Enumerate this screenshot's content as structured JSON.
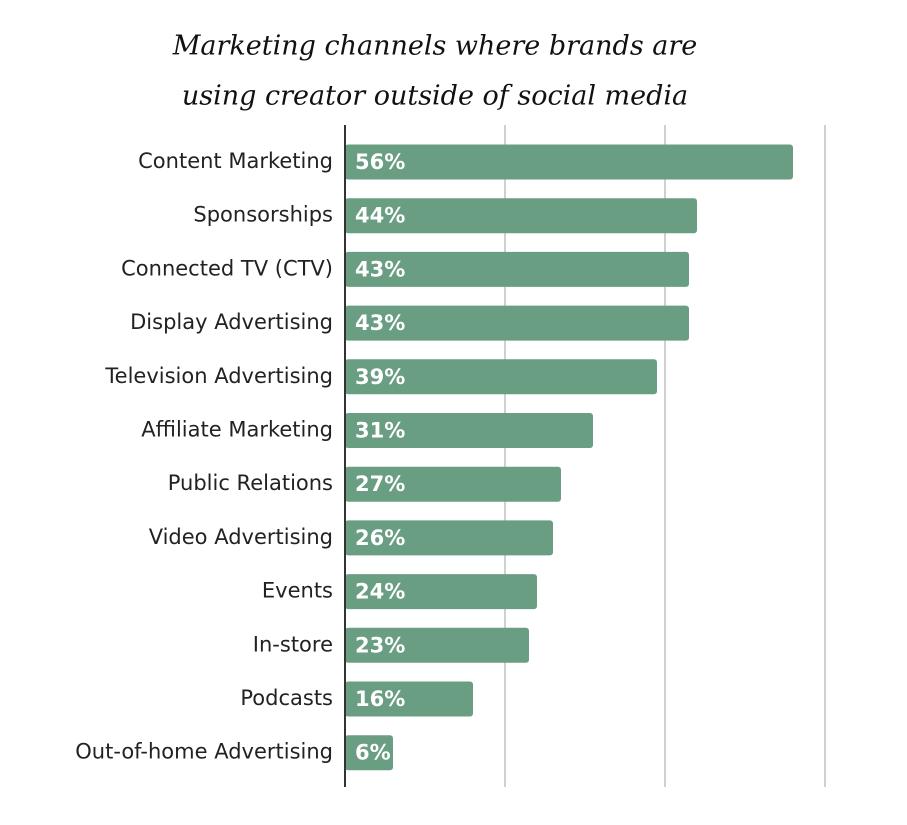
{
  "chart_data": {
    "type": "bar",
    "orientation": "horizontal",
    "title": [
      "Marketing channels where brands are",
      "using creator outside of social media"
    ],
    "categories": [
      "Content Marketing",
      "Sponsorships",
      "Connected TV (CTV)",
      "Display Advertising",
      "Television Advertising",
      "Affiliate Marketing",
      "Public Relations",
      "Video Advertising",
      "Events",
      "In-store",
      "Podcasts",
      "Out-of-home Advertising"
    ],
    "values": [
      56,
      44,
      43,
      43,
      39,
      31,
      27,
      26,
      24,
      23,
      16,
      6
    ],
    "value_labels": [
      "56%",
      "44%",
      "43%",
      "43%",
      "39%",
      "31%",
      "27%",
      "26%",
      "24%",
      "23%",
      "16%",
      "6%"
    ],
    "color": "#6a9e82",
    "xlim": [
      0,
      60
    ],
    "xticks": [
      0,
      20,
      40,
      60
    ],
    "grid": true
  }
}
